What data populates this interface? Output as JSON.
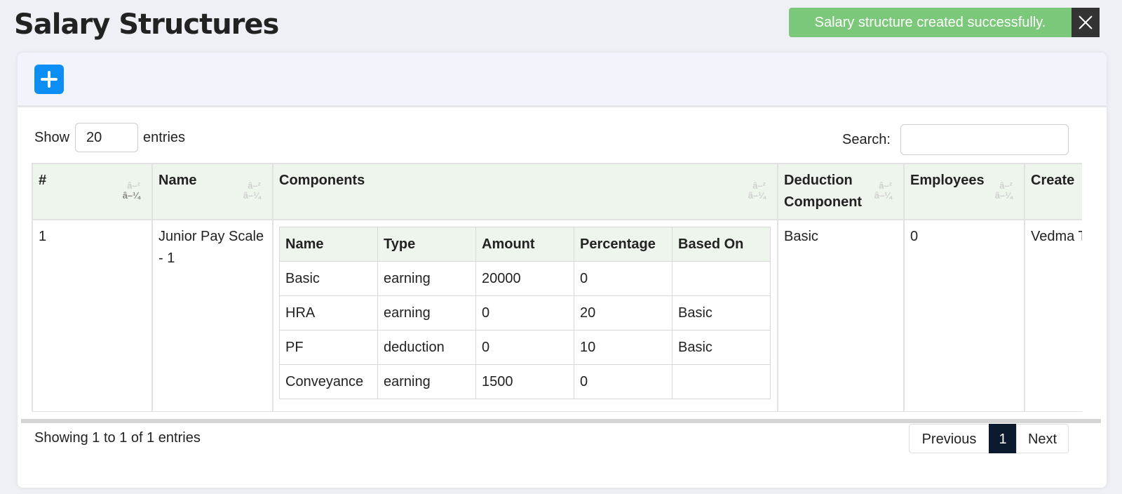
{
  "header": {
    "title": "Salary Structures"
  },
  "toast": {
    "message": "Salary structure created successfully."
  },
  "controls": {
    "show_label": "Show",
    "page_length": "20",
    "entries_label": "entries",
    "search_label": "Search:"
  },
  "sort_icons": [
    "â–²",
    "â–¼"
  ],
  "table": {
    "columns": [
      "#",
      "Name",
      "Components",
      "Deduction Component",
      "Employees",
      "Create"
    ],
    "rows": [
      {
        "index": "1",
        "name": "Junior Pay Scale - 1",
        "deduction_component": "Basic",
        "employees": "0",
        "created_by": "Vedma Tester",
        "components": {
          "columns": [
            "Name",
            "Type",
            "Amount",
            "Percentage",
            "Based On"
          ],
          "rows": [
            [
              "Basic",
              "earning",
              "20000",
              "0",
              null
            ],
            [
              "HRA",
              "earning",
              "0",
              "20",
              "Basic"
            ],
            [
              "PF",
              "deduction",
              "0",
              "10",
              "Basic"
            ],
            [
              "Conveyance",
              "earning",
              "1500",
              "0",
              null
            ]
          ]
        }
      }
    ]
  },
  "footer": {
    "info": "Showing 1 to 1 of 1 entries",
    "previous": "Previous",
    "current_page": "1",
    "next": "Next"
  }
}
